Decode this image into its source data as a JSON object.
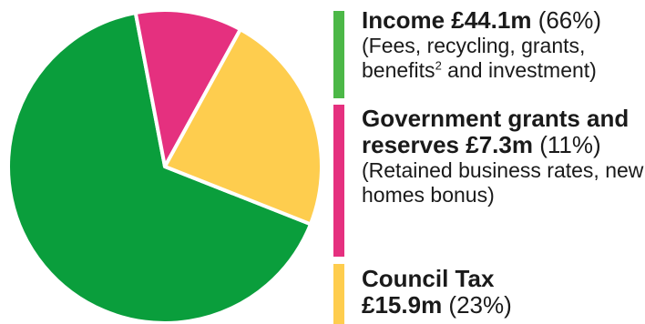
{
  "chart_data": {
    "type": "pie",
    "title": "",
    "start_angle_deg": 111.6,
    "slices": [
      {
        "name": "Income",
        "amount": "£44.1m",
        "value": 66,
        "percent_label": "(66%)",
        "description_parts": [
          "(Fees, recycling, grants, benefits",
          "2",
          " and investment)"
        ],
        "color": "#0a9e3c",
        "legend_color": "#4cb847"
      },
      {
        "name": "Government grants and reserves",
        "amount": "£7.3m",
        "value": 11,
        "percent_label": "(11%)",
        "description": "(Retained business rates, new homes bonus)",
        "color": "#e5307f",
        "legend_color": "#e5307f"
      },
      {
        "name": "Council Tax",
        "amount": "£15.9m",
        "value": 23,
        "percent_label": "(23%)",
        "color": "#fecd4e",
        "legend_color": "#fecd4e"
      }
    ]
  }
}
